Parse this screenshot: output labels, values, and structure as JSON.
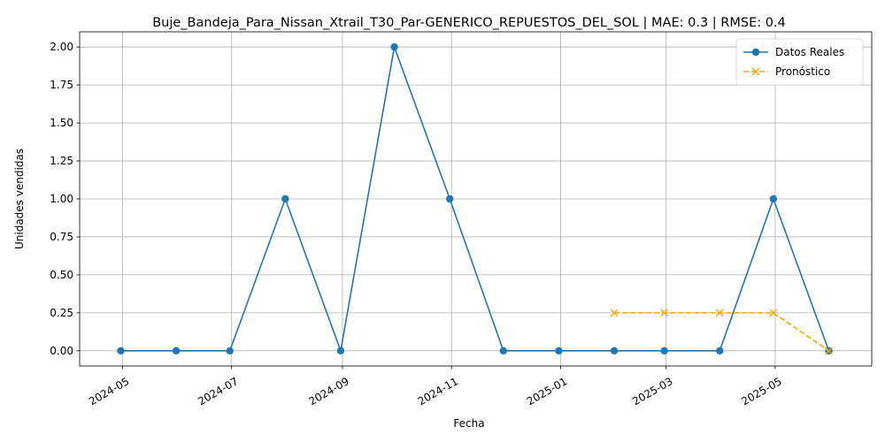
{
  "chart_data": {
    "type": "line",
    "title": "Buje_Bandeja_Para_Nissan_Xtrail_T30_Par-GENERICO_REPUESTOS_DEL_SOL | MAE: 0.3 | RMSE: 0.4",
    "xlabel": "Fecha",
    "ylabel": "Unidades vendidas",
    "ylim": [
      -0.1,
      2.1
    ],
    "xlim": [
      "2024-04-07",
      "2025-06-24"
    ],
    "grid": true,
    "legend_position": "top-right",
    "x_ticks": [
      "2024-05",
      "2024-07",
      "2024-09",
      "2024-11",
      "2025-01",
      "2025-03",
      "2025-05"
    ],
    "y_ticks": [
      0.0,
      0.25,
      0.5,
      0.75,
      1.0,
      1.25,
      1.5,
      1.75,
      2.0
    ],
    "y_tick_labels": [
      "0.00",
      "0.25",
      "0.50",
      "0.75",
      "1.00",
      "1.25",
      "1.50",
      "1.75",
      "2.00"
    ],
    "series": [
      {
        "name": "Datos Reales",
        "color": "#1f77b4",
        "marker": "circle",
        "linestyle": "solid",
        "points": [
          {
            "x": "2024-04-30",
            "y": 0
          },
          {
            "x": "2024-05-31",
            "y": 0
          },
          {
            "x": "2024-06-30",
            "y": 0
          },
          {
            "x": "2024-07-31",
            "y": 1
          },
          {
            "x": "2024-08-31",
            "y": 0
          },
          {
            "x": "2024-09-30",
            "y": 2
          },
          {
            "x": "2024-10-31",
            "y": 1
          },
          {
            "x": "2024-11-30",
            "y": 0
          },
          {
            "x": "2024-12-31",
            "y": 0
          },
          {
            "x": "2025-01-31",
            "y": 0
          },
          {
            "x": "2025-02-28",
            "y": 0
          },
          {
            "x": "2025-03-31",
            "y": 0
          },
          {
            "x": "2025-04-30",
            "y": 1
          },
          {
            "x": "2025-05-31",
            "y": 0
          }
        ]
      },
      {
        "name": "Pronóstico",
        "color": "#ffa500",
        "marker": "x",
        "linestyle": "dashed",
        "points": [
          {
            "x": "2025-01-31",
            "y": 0.25
          },
          {
            "x": "2025-02-28",
            "y": 0.25
          },
          {
            "x": "2025-03-31",
            "y": 0.25
          },
          {
            "x": "2025-04-30",
            "y": 0.25
          },
          {
            "x": "2025-05-31",
            "y": 0
          }
        ]
      }
    ]
  }
}
